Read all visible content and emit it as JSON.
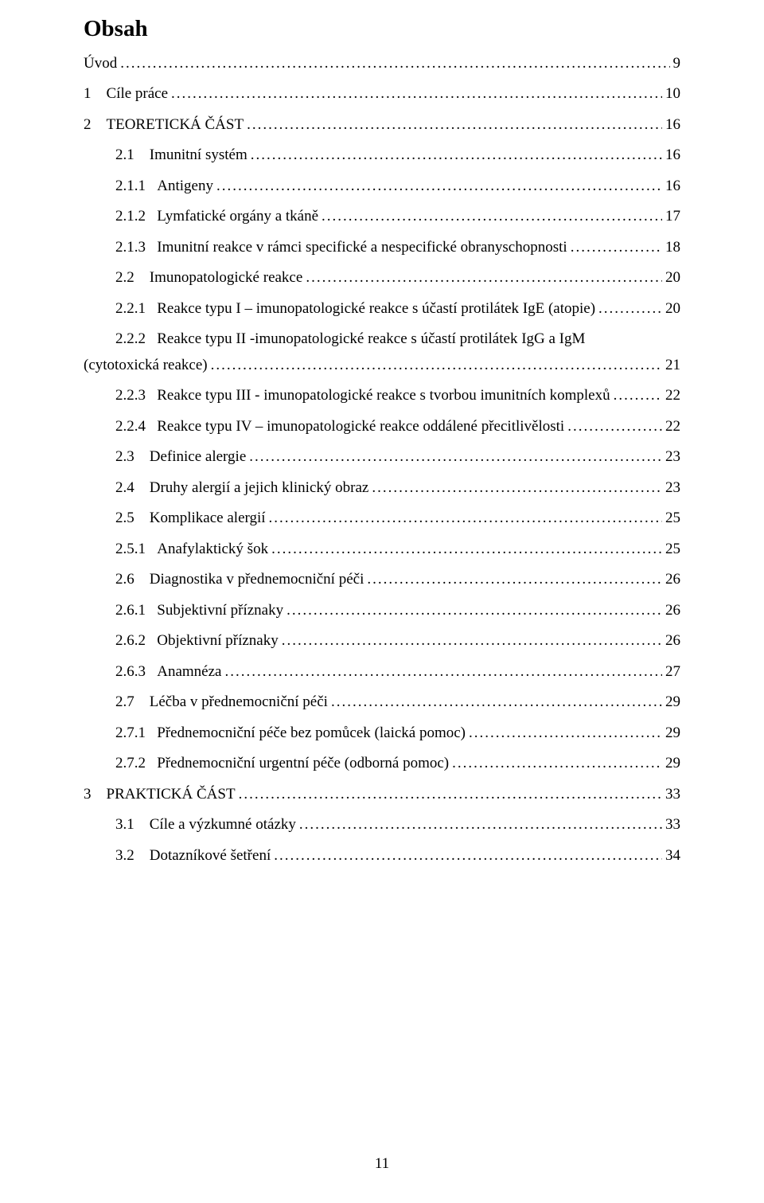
{
  "title": "Obsah",
  "pageNumber": "11",
  "leaderDots": "................................................................................................................................................................................................",
  "entries": [
    {
      "indent": 0,
      "num": "",
      "label": "Úvod",
      "page": "9"
    },
    {
      "indent": 0,
      "num": "1",
      "label": "Cíle práce",
      "page": "10"
    },
    {
      "indent": 0,
      "num": "2",
      "label": "TEORETICKÁ ČÁST",
      "page": "16"
    },
    {
      "indent": 1,
      "num": "2.1",
      "label": "Imunitní systém",
      "page": "16"
    },
    {
      "indent": 2,
      "num": "2.1.1",
      "label": "Antigeny",
      "page": "16"
    },
    {
      "indent": 2,
      "num": "2.1.2",
      "label": "Lymfatické orgány a tkáně",
      "page": "17"
    },
    {
      "indent": 2,
      "num": "2.1.3",
      "label": "Imunitní reakce v rámci specifické a nespecifické obranyschopnosti",
      "page": "18"
    },
    {
      "indent": 1,
      "num": "2.2",
      "label": "Imunopatologické reakce",
      "page": "20"
    },
    {
      "indent": 2,
      "num": "2.2.1",
      "label": "Reakce typu I – imunopatologické reakce s účastí protilátek IgE (atopie)",
      "page": "20"
    },
    {
      "indent": 2,
      "num": "2.2.2",
      "label": "Reakce typu II -imunopatologické reakce s účastí protilátek IgG a IgM",
      "wrapLabel": "(cytotoxická reakce)",
      "page": "21"
    },
    {
      "indent": 2,
      "num": "2.2.3",
      "label": "Reakce typu III - imunopatologické reakce s tvorbou imunitních komplexů",
      "page": "22"
    },
    {
      "indent": 2,
      "num": "2.2.4",
      "label": "Reakce typu IV – imunopatologické reakce oddálené přecitlivělosti",
      "page": "22"
    },
    {
      "indent": 1,
      "num": "2.3",
      "label": "Definice alergie",
      "page": "23"
    },
    {
      "indent": 1,
      "num": "2.4",
      "label": "Druhy alergií a jejich klinický obraz",
      "page": "23"
    },
    {
      "indent": 1,
      "num": "2.5",
      "label": "Komplikace alergií",
      "page": "25"
    },
    {
      "indent": 2,
      "num": "2.5.1",
      "label": "Anafylaktický šok",
      "page": "25"
    },
    {
      "indent": 1,
      "num": "2.6",
      "label": "Diagnostika v přednemocniční péči",
      "page": "26"
    },
    {
      "indent": 2,
      "num": "2.6.1",
      "label": "Subjektivní příznaky",
      "page": "26"
    },
    {
      "indent": 2,
      "num": "2.6.2",
      "label": "Objektivní příznaky",
      "page": "26"
    },
    {
      "indent": 2,
      "num": "2.6.3",
      "label": "Anamnéza",
      "page": "27"
    },
    {
      "indent": 1,
      "num": "2.7",
      "label": "Léčba v přednemocniční péči",
      "page": "29"
    },
    {
      "indent": 2,
      "num": "2.7.1",
      "label": "Přednemocniční péče bez pomůcek (laická pomoc)",
      "page": "29"
    },
    {
      "indent": 2,
      "num": "2.7.2",
      "label": "Přednemocniční urgentní péče (odborná pomoc)",
      "page": "29"
    },
    {
      "indent": 0,
      "num": "3",
      "label": "PRAKTICKÁ ČÁST",
      "page": "33"
    },
    {
      "indent": 1,
      "num": "3.1",
      "label": "Cíle a výzkumné otázky",
      "page": "33"
    },
    {
      "indent": 1,
      "num": "3.2",
      "label": "Dotazníkové šetření",
      "page": "34"
    }
  ]
}
